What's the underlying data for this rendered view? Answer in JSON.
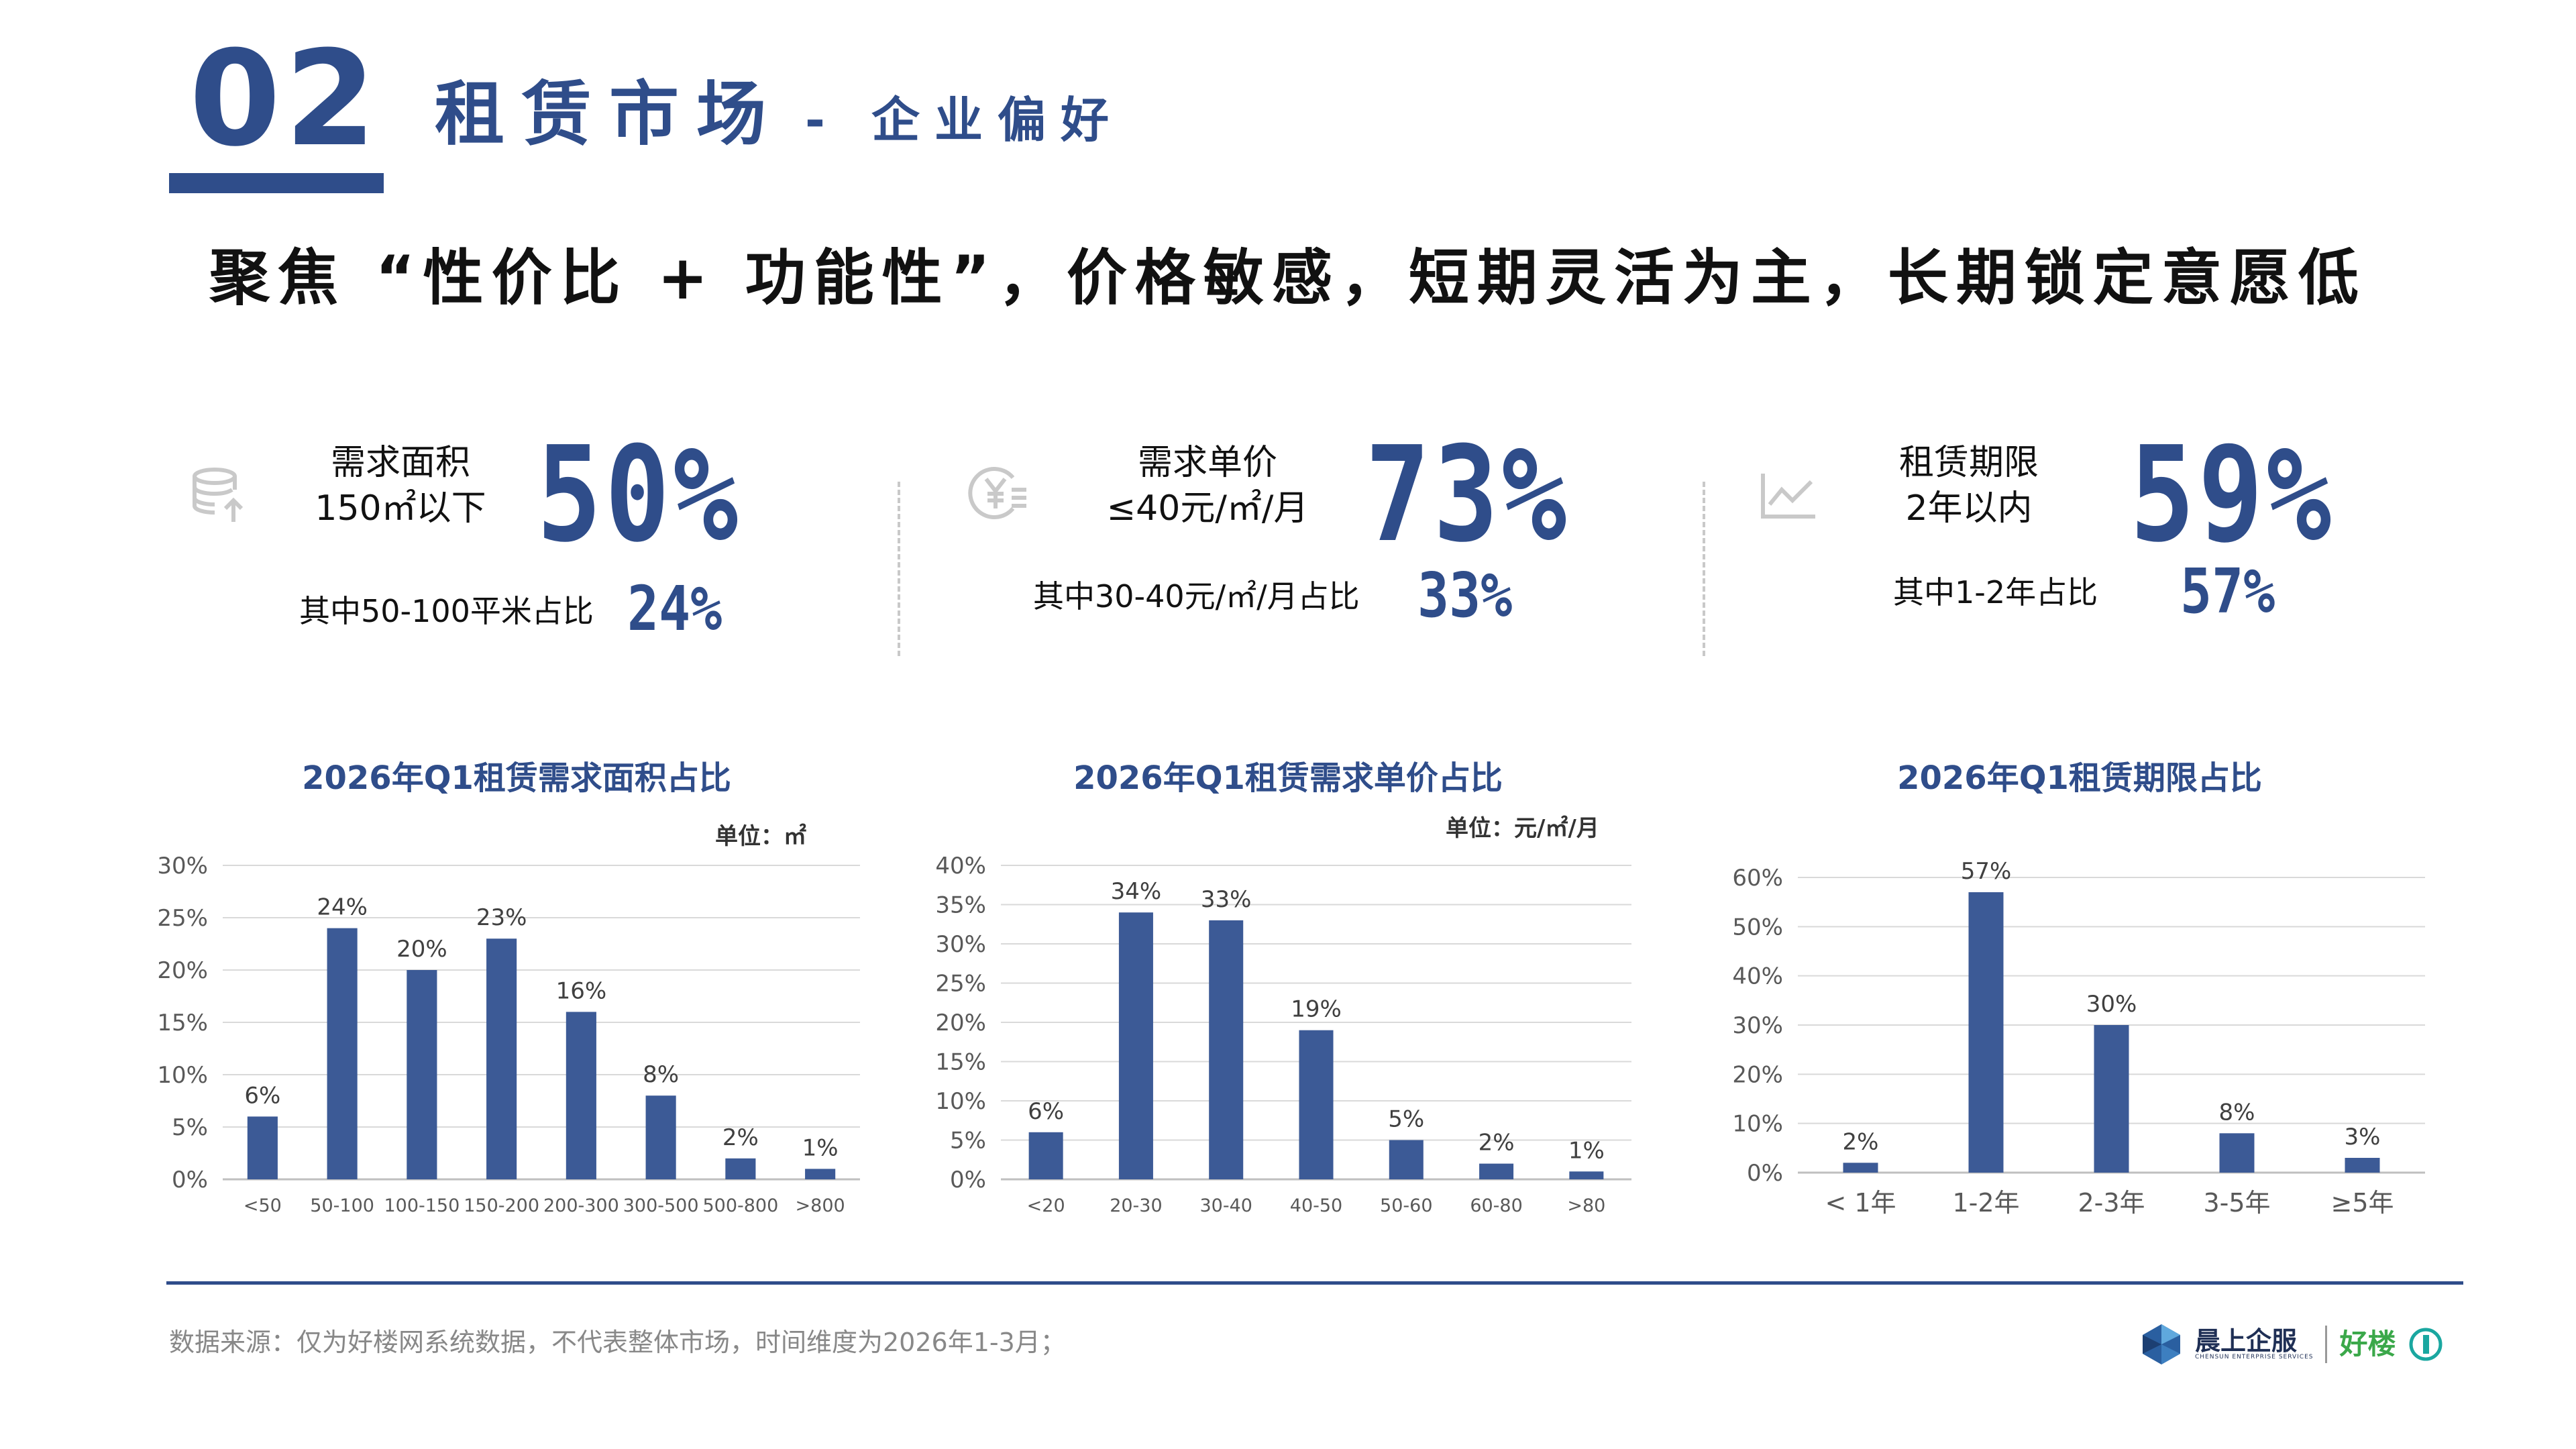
{
  "section": {
    "number": "02",
    "title": "租赁市场",
    "subtitle": "- 企业偏好"
  },
  "headline": "聚焦 “性价比 + 功能性”，价格敏感，短期灵活为主，长期锁定意愿低",
  "stats": [
    {
      "icon": "database-icon",
      "label_line1": "需求面积",
      "label_line2": "150㎡以下",
      "value": "50%",
      "sub_label": "其中50-100平米占比",
      "sub_value": "24%"
    },
    {
      "icon": "yen-coin-icon",
      "label_line1": "需求单价",
      "label_line2": "≤40元/㎡/月",
      "value": "73%",
      "sub_label": "其中30-40元/㎡/月占比",
      "sub_value": "33%"
    },
    {
      "icon": "trend-chart-icon",
      "label_line1": "租赁期限",
      "label_line2": "2年以内",
      "value": "59%",
      "sub_label": "其中1-2年占比",
      "sub_value": "57%"
    }
  ],
  "chart_data": [
    {
      "type": "bar",
      "title": "2026年Q1租赁需求面积占比",
      "unit_label": "单位：㎡",
      "categories": [
        "<50",
        "50-100",
        "100-150",
        "150-200",
        "200-300",
        "300-500",
        "500-800",
        ">800"
      ],
      "values": [
        6,
        24,
        20,
        23,
        16,
        8,
        2,
        1
      ],
      "value_labels": [
        "6%",
        "24%",
        "20%",
        "23%",
        "16%",
        "8%",
        "2%",
        "1%"
      ],
      "yticks": [
        "0%",
        "5%",
        "10%",
        "15%",
        "20%",
        "25%",
        "30%"
      ],
      "ylim": [
        0,
        30
      ],
      "ystep": 5,
      "color": "#3c5a96",
      "grid": true
    },
    {
      "type": "bar",
      "title": "2026年Q1租赁需求单价占比",
      "unit_label": "单位：元/㎡/月",
      "categories": [
        "<20",
        "20-30",
        "30-40",
        "40-50",
        "50-60",
        "60-80",
        ">80"
      ],
      "values": [
        6,
        34,
        33,
        19,
        5,
        2,
        1
      ],
      "value_labels": [
        "6%",
        "34%",
        "33%",
        "19%",
        "5%",
        "2%",
        "1%"
      ],
      "yticks": [
        "0%",
        "5%",
        "10%",
        "15%",
        "20%",
        "25%",
        "30%",
        "35%",
        "40%"
      ],
      "ylim": [
        0,
        40
      ],
      "ystep": 5,
      "color": "#3c5a96",
      "grid": true
    },
    {
      "type": "bar",
      "title": "2026年Q1租赁期限占比",
      "categories": [
        "< 1年",
        "1-2年",
        "2-3年",
        "3-5年",
        "≥5年"
      ],
      "values": [
        2,
        57,
        30,
        8,
        3
      ],
      "value_labels": [
        "2%",
        "57%",
        "30%",
        "8%",
        "3%"
      ],
      "yticks": [
        "0%",
        "10%",
        "20%",
        "30%",
        "40%",
        "50%",
        "60%"
      ],
      "ylim": [
        0,
        60
      ],
      "ystep": 10,
      "color": "#3c5a96",
      "grid": true
    }
  ],
  "footer": {
    "source": "数据来源：仅为好楼网系统数据，不代表整体市场，时间维度为2026年1-3月；",
    "logo_cn": "晨上企服",
    "logo_en": "CHENSUN ENTERPRISE SERVICES",
    "logo2": "好楼"
  }
}
